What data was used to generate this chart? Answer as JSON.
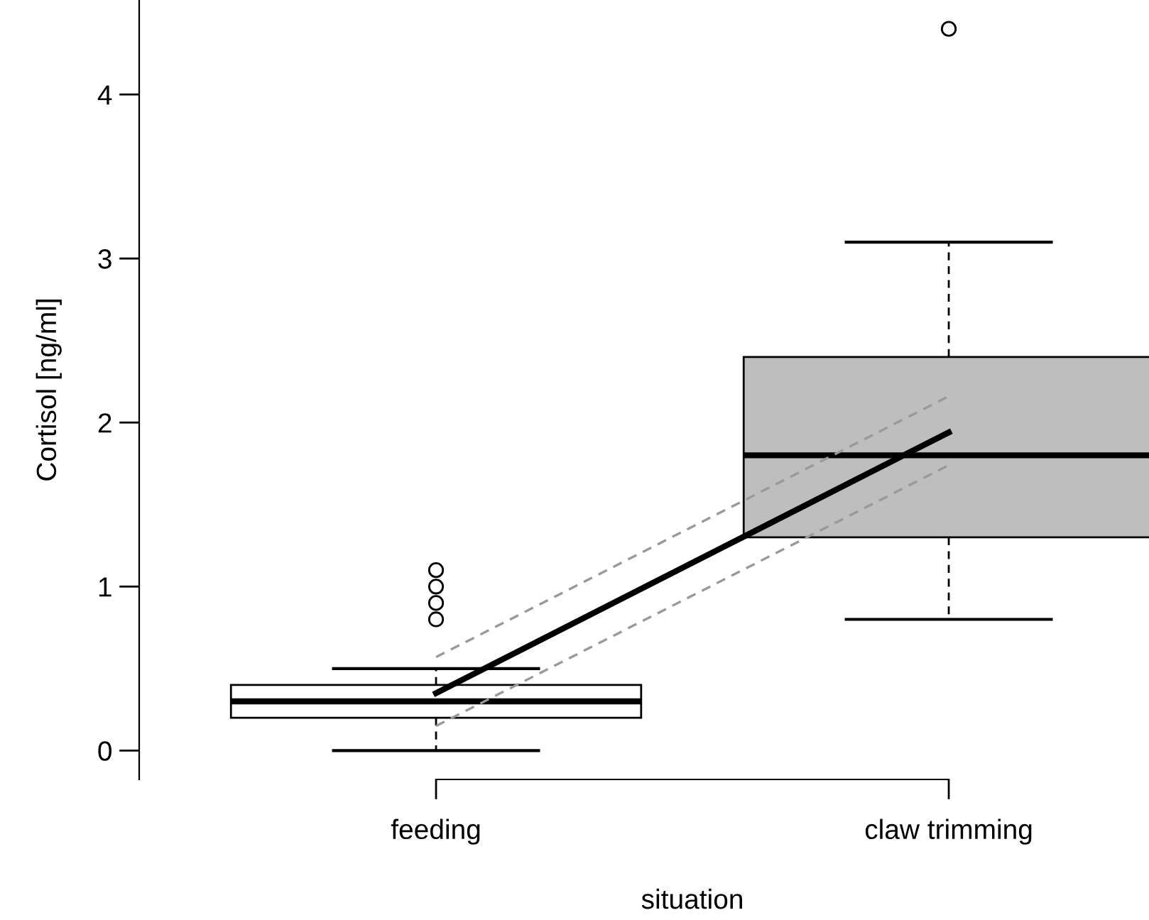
{
  "chart_data": {
    "type": "box",
    "xlabel": "situation",
    "ylabel": "Cortisol [ng/ml]",
    "categories": [
      "feeding",
      "claw trimming"
    ],
    "ylim": [
      -0.176,
      4.576
    ],
    "yticks": [
      0,
      1,
      2,
      3,
      4
    ],
    "grid": false,
    "series": [
      {
        "colors": [
          "#ffffff",
          "#bebebe"
        ],
        "boxes": [
          {
            "low": 0,
            "q1": 0.2,
            "median": 0.3,
            "q3": 0.4,
            "high": 0.5,
            "outliers": [
              0.8,
              0.9,
              1.0,
              1.1
            ]
          },
          {
            "low": 0.8,
            "q1": 1.3,
            "median": 1.8,
            "q3": 2.4,
            "high": 3.1,
            "outliers": [
              4.4
            ]
          }
        ]
      },
      {
        "type": "line",
        "color": "#999999",
        "line_style": "dashed",
        "values": [
          0.15,
          1.74
        ]
      },
      {
        "type": "line",
        "color": "#999999",
        "line_style": "dashed",
        "values": [
          0.57,
          2.16
        ]
      },
      {
        "type": "line",
        "color": "#000000",
        "line_style": "solid",
        "values": [
          0.35,
          1.94
        ]
      }
    ]
  }
}
